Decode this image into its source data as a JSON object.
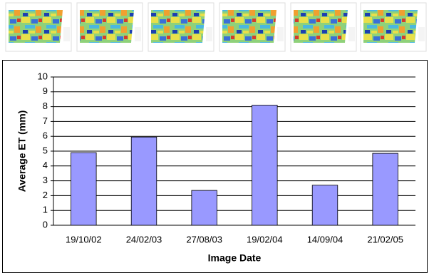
{
  "chart_data": {
    "type": "bar",
    "xlabel": "Image Date",
    "ylabel": "Average ET (mm)",
    "categories": [
      "19/10/02",
      "24/02/03",
      "27/08/03",
      "19/02/04",
      "14/09/04",
      "21/02/05"
    ],
    "values": [
      4.9,
      5.95,
      2.35,
      8.1,
      2.7,
      4.85
    ],
    "color": "#9999ff",
    "ylim": [
      0,
      10
    ],
    "yticks": [
      0,
      1,
      2,
      3,
      4,
      5,
      6,
      7,
      8,
      9,
      10
    ],
    "grid": true
  }
}
